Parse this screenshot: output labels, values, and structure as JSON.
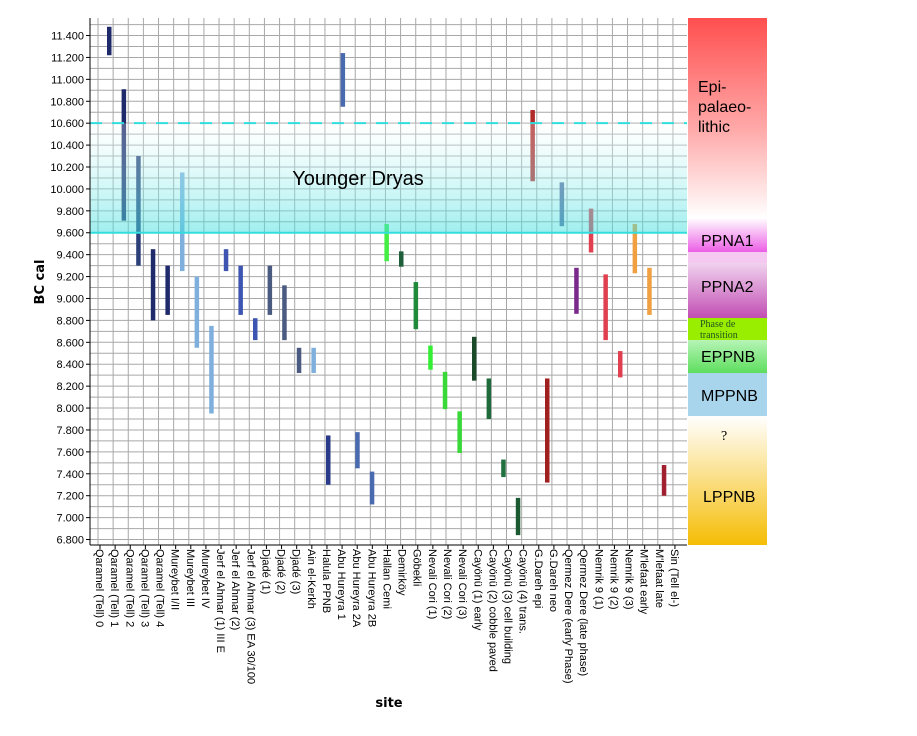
{
  "chart_data": {
    "type": "bar",
    "subtype": "floating-range",
    "xlabel": "site",
    "ylabel": "BC cal",
    "ylim": [
      6750,
      11560
    ],
    "yticks": [
      6800,
      7000,
      7200,
      7400,
      7600,
      7800,
      8000,
      8200,
      8400,
      8600,
      8800,
      9000,
      9200,
      9400,
      9600,
      9800,
      10000,
      10200,
      10400,
      10600,
      10800,
      11000,
      11200,
      11400
    ],
    "ytick_labels": [
      "6.800",
      "7.000",
      "7.200",
      "7.400",
      "7.600",
      "7.800",
      "8.000",
      "8.200",
      "8.400",
      "8.600",
      "8.800",
      "9.000",
      "9.200",
      "9.400",
      "9.600",
      "9.800",
      "10.000",
      "10.200",
      "10.400",
      "10.600",
      "10.800",
      "11.000",
      "11.200",
      "11.400"
    ],
    "grid": true,
    "categories": [
      "Qaramel (Tell) 0",
      "Qaramel (Tell) 1",
      "Qaramel (Tell) 2",
      "Qaramel (Tell) 3",
      "Qaramel (Tell) 4",
      "Mureybet I/II",
      "Mureybet III",
      "Mureybet IV",
      "Jerf el Ahmar (1) III E",
      "Jerf el Ahmar (2)",
      "Jerf el Ahmar (3) EA 30/100",
      "Djadé (1)",
      "Djadé (2)",
      "Djadé (3)",
      "Ain el-Kerkh",
      "Halula PPNB",
      "Abu Hureyra 1",
      "Abu Hureyra 2A",
      "Abu Hureyra 2B",
      "Hallan Cemi",
      "Demirköy",
      "Göbekli",
      "Nevali Cori (1)",
      "Nevali Cori (2)",
      "Nevali Cori (3)",
      "Cayönü (1) early",
      "Cayönü (2) cobble paved",
      "Cayönü (3) cell building",
      "Cayönü (4) trans.",
      "G.Dareh epi",
      "G.Dareh neo",
      "Qermez Dere (early Phase)",
      "Qermez Dere (late phase)",
      "Nemrik 9 (1)",
      "Nemrik 9 (2)",
      "Nemrik 9 (3)",
      "M'lefaat early",
      "M'lefaat late",
      "Sin (Tell el-)"
    ],
    "ranges": [
      [
        11220,
        11480
      ],
      [
        9710,
        10910
      ],
      [
        9300,
        10300
      ],
      [
        8800,
        9450
      ],
      [
        8850,
        9300
      ],
      [
        9250,
        10150
      ],
      [
        8550,
        9200
      ],
      [
        7950,
        8750
      ],
      [
        9250,
        9450
      ],
      [
        8850,
        9300
      ],
      [
        8620,
        8820
      ],
      [
        8850,
        9300
      ],
      [
        8620,
        9120
      ],
      [
        8320,
        8550
      ],
      [
        8320,
        8550
      ],
      [
        7300,
        7750
      ],
      [
        10750,
        11240
      ],
      [
        7450,
        7780
      ],
      [
        7120,
        7420
      ],
      [
        9340,
        9680
      ],
      [
        9290,
        9430
      ],
      [
        8720,
        9150
      ],
      [
        8350,
        8570
      ],
      [
        7990,
        8330
      ],
      [
        7590,
        7970
      ],
      [
        8250,
        8650
      ],
      [
        7900,
        8270
      ],
      [
        7370,
        7530
      ],
      [
        6840,
        7180
      ],
      [
        10070,
        10720
      ],
      [
        7320,
        8270
      ],
      [
        9660,
        10060
      ],
      [
        8860,
        9280
      ],
      [
        9420,
        9820
      ],
      [
        8620,
        9220
      ],
      [
        8280,
        8520
      ],
      [
        9230,
        9680
      ],
      [
        8850,
        9280
      ],
      [
        7200,
        7480
      ]
    ],
    "colors": [
      "#1f2a6b",
      "#1f2a6b",
      "#2a3f78",
      "#1f2a6b",
      "#1f2a6b",
      "#7fb0dd",
      "#7fb0dd",
      "#7fb0dd",
      "#3d55b0",
      "#3d55b0",
      "#3d55b0",
      "#4a5a80",
      "#4a5a80",
      "#4a5a80",
      "#7fb0dd",
      "#2a3a8a",
      "#4a6ab0",
      "#4a6ab0",
      "#4a6ab0",
      "#44ee44",
      "#1e5e3a",
      "#1f8a3a",
      "#33ee33",
      "#38d838",
      "#38d838",
      "#1b4a2a",
      "#1f6a3a",
      "#207040",
      "#1b5a30",
      "#b02a2a",
      "#a02020",
      "#5a6aa0",
      "#7a2a8a",
      "#e04050",
      "#e04050",
      "#e04050",
      "#f0a040",
      "#f0a040",
      "#a02030"
    ],
    "annotations": {
      "younger_dryas": {
        "label": "Younger Dryas",
        "range": [
          9600,
          10600
        ]
      }
    },
    "periods": [
      {
        "label": "Epi-",
        "label2": "palaeo-",
        "label3": "lithic"
      },
      {
        "label": "PPNA1"
      },
      {
        "label": "PPNA2"
      },
      {
        "label": "Phase de",
        "label2": "transition"
      },
      {
        "label": "EPPNB"
      },
      {
        "label": "MPPNB"
      },
      {
        "label": "?"
      },
      {
        "label": "LPPNB"
      }
    ]
  }
}
